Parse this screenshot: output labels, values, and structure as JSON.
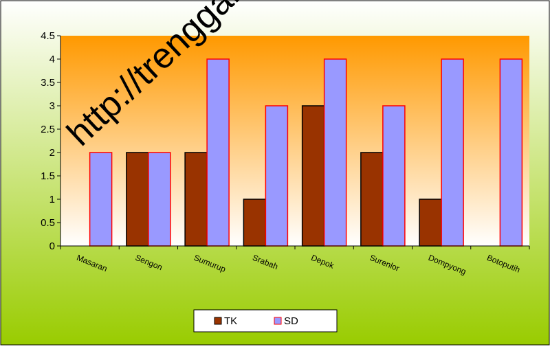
{
  "chart_data": {
    "type": "bar",
    "categories": [
      "Masaran",
      "Sengon",
      "Sumurup",
      "Srabah",
      "Depok",
      "Surenlor",
      "Dompyong",
      "Botoputih"
    ],
    "series": [
      {
        "name": "TK",
        "values": [
          0,
          2,
          2,
          1,
          3,
          2,
          1,
          0
        ]
      },
      {
        "name": "SD",
        "values": [
          2,
          2,
          4,
          3,
          4,
          3,
          4,
          4
        ]
      }
    ],
    "ylim": [
      0,
      4.5
    ],
    "yticks": [
      "0",
      "0.5",
      "1",
      "1.5",
      "2",
      "2.5",
      "3",
      "3.5",
      "4",
      "4.5"
    ],
    "title": "",
    "xlabel": "",
    "ylabel": "",
    "legend_position": "bottom",
    "grid": false,
    "watermark": "http://trenggalek"
  },
  "colors": {
    "tk_fill": "#993300",
    "tk_border": "#000000",
    "sd_fill": "#9999FF",
    "sd_border": "#FF0000",
    "plot_top": "#FF9900",
    "plot_bottom": "#FFFFFF",
    "chart_top": "#FFFFFF",
    "chart_bottom": "#99CC00"
  }
}
